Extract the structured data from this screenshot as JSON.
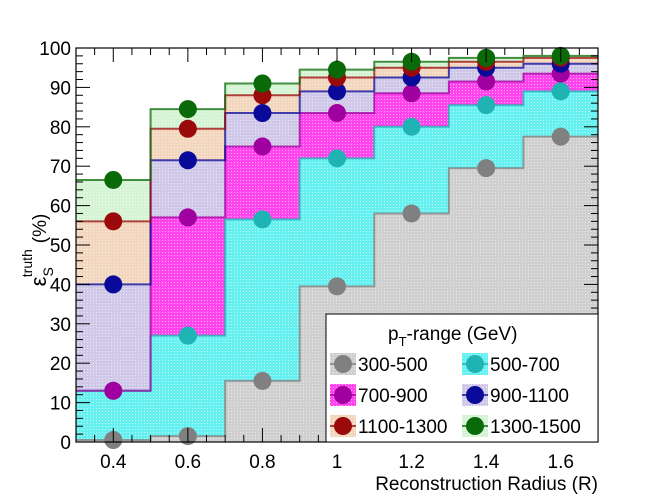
{
  "chart_data": {
    "type": "area",
    "xlabel": "Reconstruction Radius (R)",
    "ylabel_main": "ε",
    "ylabel_sub": "S",
    "ylabel_sup": "truth",
    "ylabel_unit": "(%)",
    "xlim": [
      0.3,
      1.7
    ],
    "ylim": [
      0,
      100
    ],
    "x_ticks": [
      "0.4",
      "0.6",
      "0.8",
      "1",
      "1.2",
      "1.4",
      "1.6"
    ],
    "y_ticks": [
      "0",
      "10",
      "20",
      "30",
      "40",
      "50",
      "60",
      "70",
      "80",
      "90",
      "100"
    ],
    "x": [
      0.4,
      0.6,
      0.8,
      1.0,
      1.2,
      1.4,
      1.6
    ],
    "legend": {
      "title_p": "p",
      "title_sub": "T",
      "title_rest": "-range (GeV)",
      "placement": "bottom-right"
    },
    "series": [
      {
        "name": "300-500",
        "color": "#808080",
        "fill": "#cfcfcf",
        "values": [
          0.5,
          1.5,
          15.5,
          39.5,
          58.0,
          69.5,
          77.5
        ]
      },
      {
        "name": "500-700",
        "color": "#1fb3b3",
        "fill": "#66f0f0",
        "values": [
          13.0,
          27.0,
          56.5,
          72.0,
          80.0,
          85.5,
          89.0
        ]
      },
      {
        "name": "700-900",
        "color": "#a000a0",
        "fill": "#ff44ee",
        "values": [
          13.0,
          57.0,
          75.0,
          83.5,
          88.5,
          91.5,
          93.5
        ]
      },
      {
        "name": "900-1100",
        "color": "#0a0a9a",
        "fill": "#d0c8e8",
        "values": [
          40.0,
          71.5,
          83.5,
          89.0,
          92.5,
          95.0,
          96.0
        ]
      },
      {
        "name": "1100-1300",
        "color": "#9a0a0a",
        "fill": "#f2d6be",
        "values": [
          56.0,
          79.5,
          88.0,
          92.5,
          95.0,
          96.5,
          97.5
        ]
      },
      {
        "name": "1300-1500",
        "color": "#0a6a0a",
        "fill": "#d4f4d4",
        "values": [
          66.5,
          84.5,
          91.0,
          94.5,
          96.5,
          97.5,
          98.0
        ]
      }
    ]
  }
}
